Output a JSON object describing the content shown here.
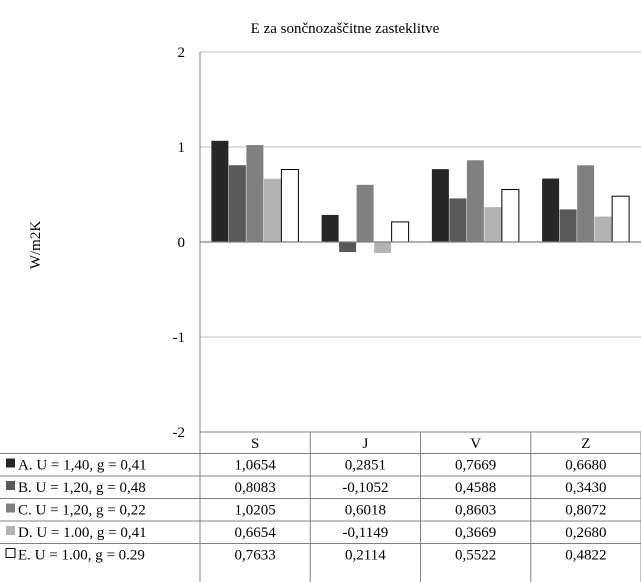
{
  "chart_data": {
    "type": "bar",
    "title": "E za sončnozaščitne zasteklitve",
    "ylabel": "W/m2K",
    "xlabel": "",
    "ylim": [
      -2,
      2
    ],
    "yticks": [
      "2",
      "1",
      "0",
      "-1",
      "-2"
    ],
    "grid": true,
    "legend": "data-table-left",
    "categories": [
      "S",
      "J",
      "V",
      "Z"
    ],
    "series": [
      {
        "name": "A. U = 1,40, g = 0,41",
        "color": "#262626",
        "values": [
          1.0654,
          0.2851,
          0.7669,
          0.668
        ],
        "labels": [
          "1,0654",
          "0,2851",
          "0,7669",
          "0,6680"
        ]
      },
      {
        "name": "B. U = 1,20, g = 0,48",
        "color": "#595959",
        "values": [
          0.8083,
          -0.1052,
          0.4588,
          0.343
        ],
        "labels": [
          "0,8083",
          "-0,1052",
          "0,4588",
          "0,3430"
        ]
      },
      {
        "name": "C. U = 1,20, g = 0,22",
        "color": "#808080",
        "values": [
          1.0205,
          0.6018,
          0.8603,
          0.8072
        ],
        "labels": [
          "1,0205",
          "0,6018",
          "0,8603",
          "0,8072"
        ]
      },
      {
        "name": "D. U = 1.00, g = 0,41",
        "color": "#b3b3b3",
        "values": [
          0.6654,
          -0.1149,
          0.3669,
          0.268
        ],
        "labels": [
          "0,6654",
          "-0,1149",
          "0,3669",
          "0,2680"
        ]
      },
      {
        "name": "E. U = 1.00, g = 0.29",
        "color": "#ffffff",
        "values": [
          0.7633,
          0.2114,
          0.5522,
          0.4822
        ],
        "labels": [
          "0,7633",
          "0,2114",
          "0,5522",
          "0,4822"
        ]
      }
    ]
  }
}
